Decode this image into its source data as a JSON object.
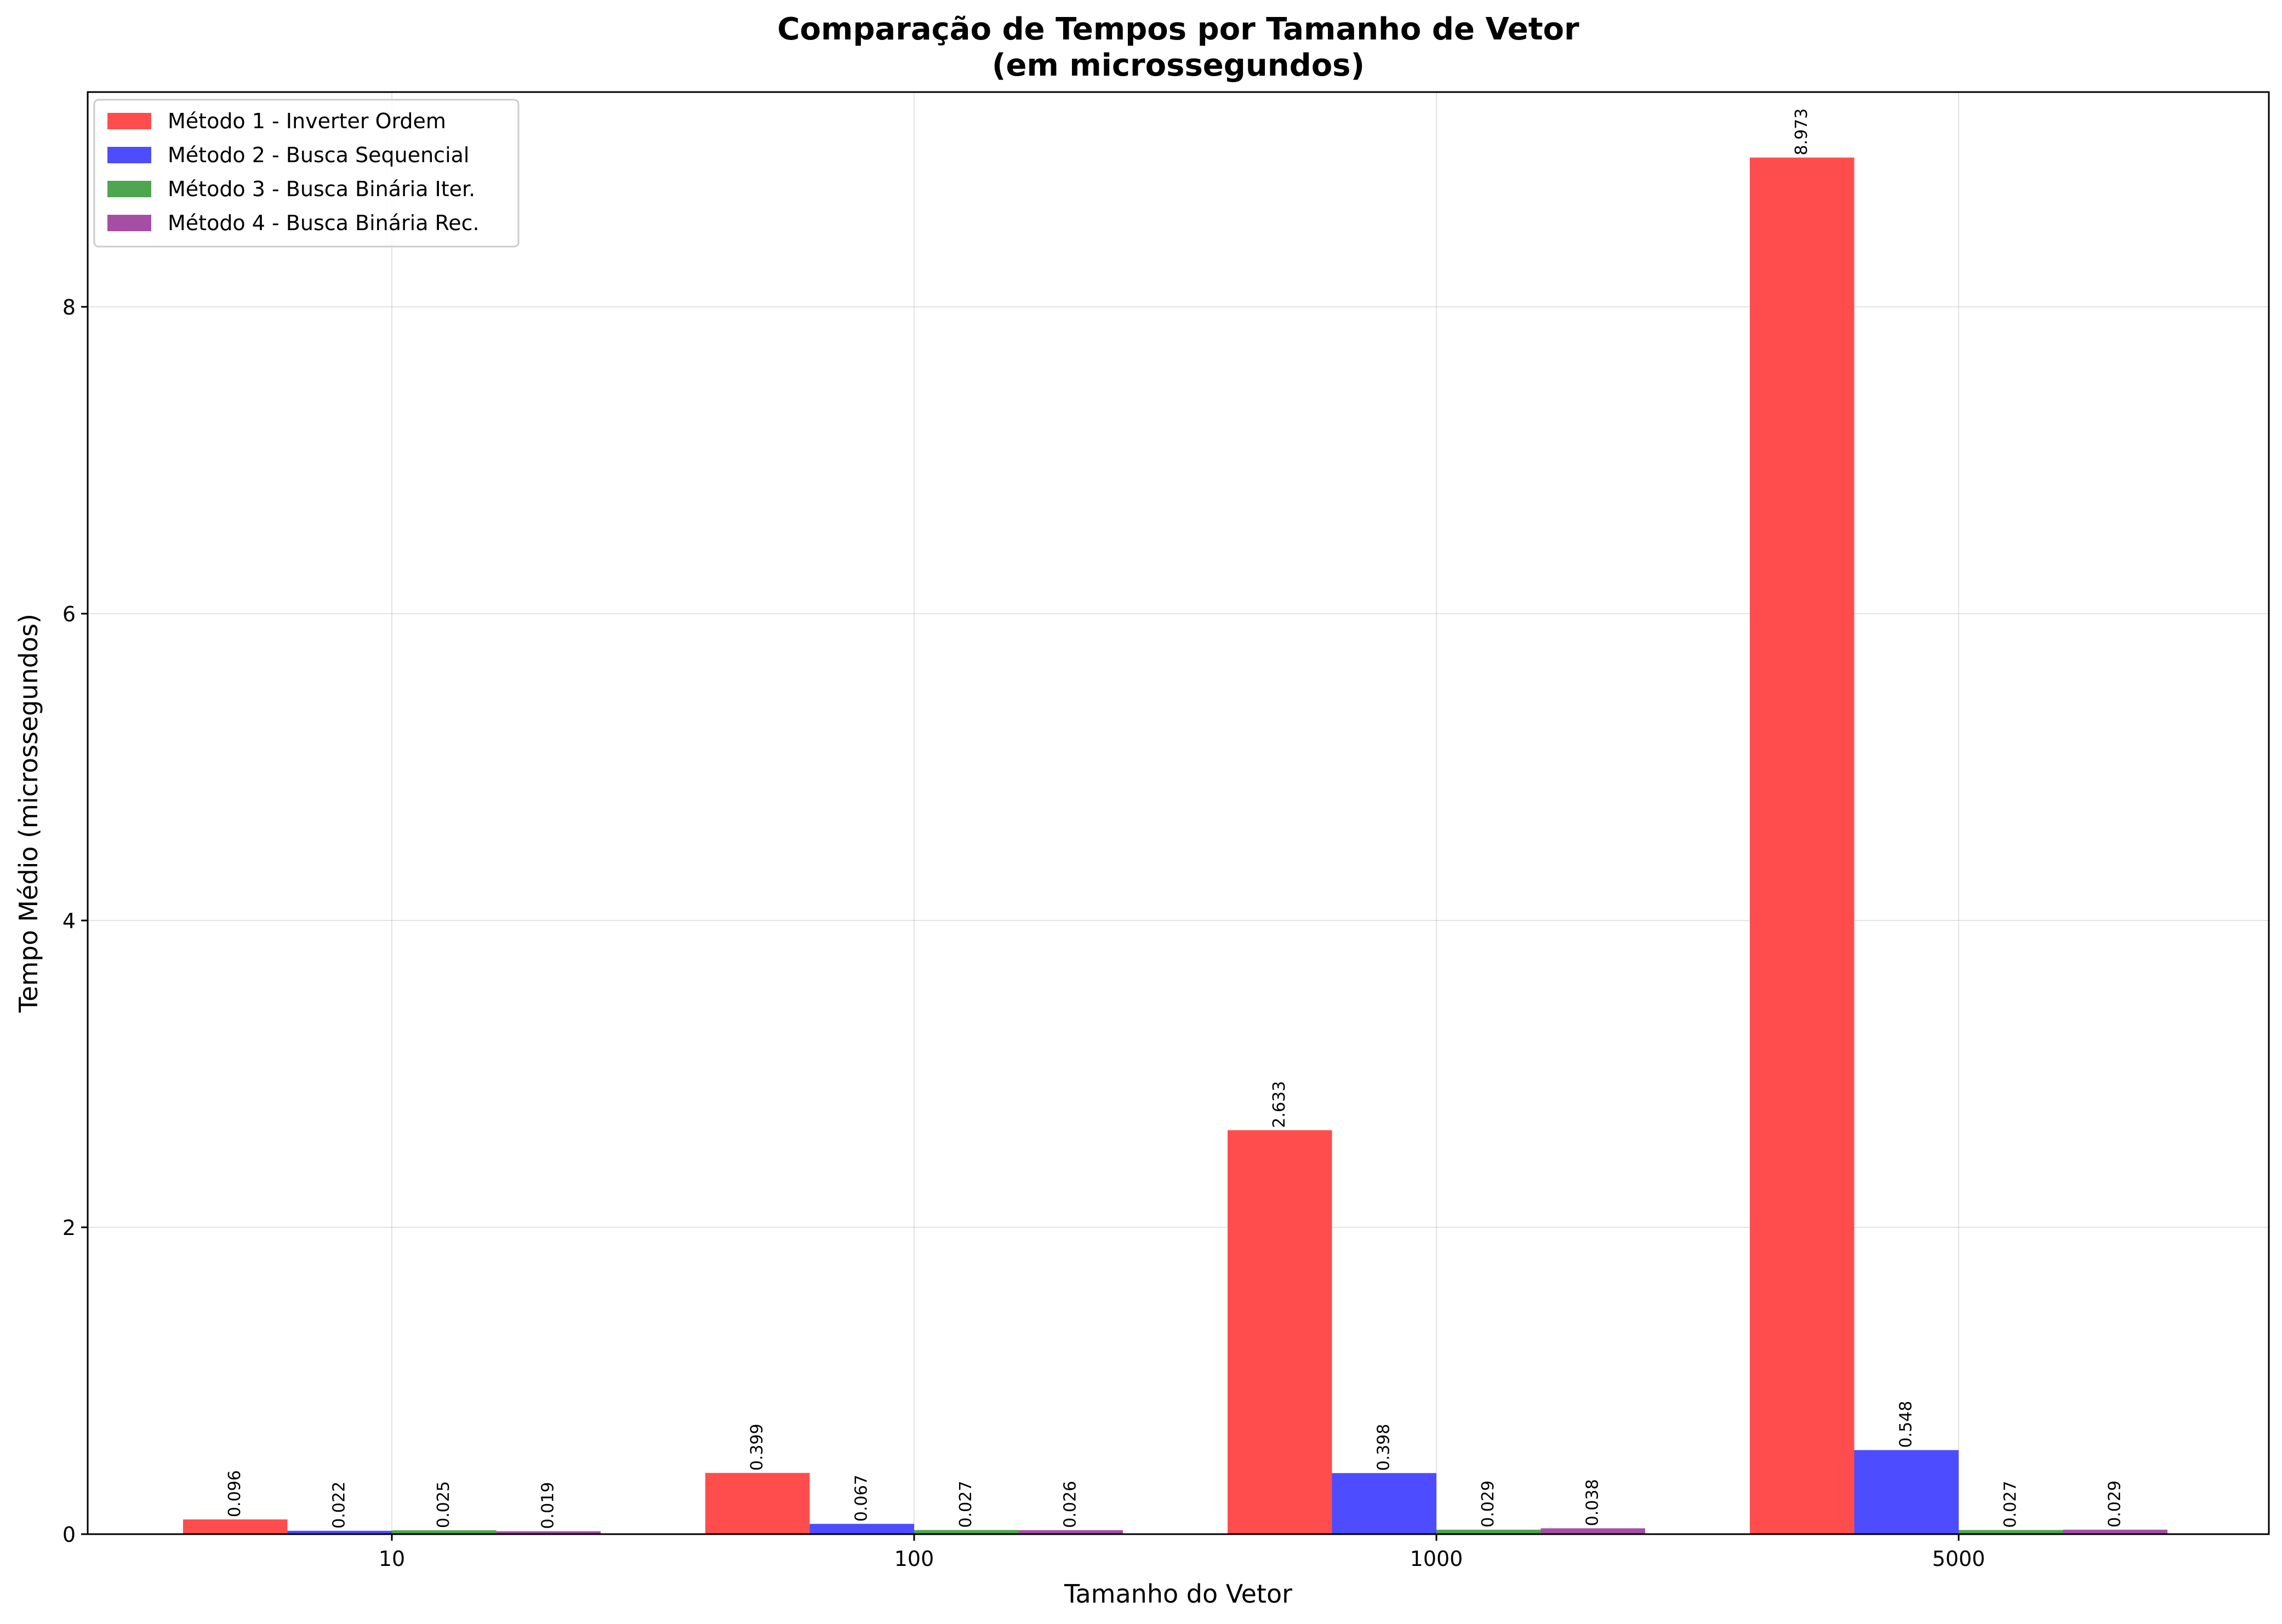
{
  "chart_data": {
    "type": "bar",
    "title": "Comparação de Tempos por Tamanho de Vetor",
    "subtitle": "(em microssegundos)",
    "xlabel": "Tamanho do Vetor",
    "ylabel": "Tempo Médio (microssegundos)",
    "categories": [
      "10",
      "100",
      "1000",
      "5000"
    ],
    "ylim": [
      0,
      9.4
    ],
    "yticks": [
      0,
      2,
      4,
      6,
      8
    ],
    "grid": true,
    "legend_position": "top-left",
    "series": [
      {
        "name": "Método 1 - Inverter Ordem",
        "color": "#ff4d4d",
        "values": [
          0.096,
          0.399,
          2.633,
          8.973
        ],
        "labels": [
          "0.096",
          "0.399",
          "2.633",
          "8.973"
        ]
      },
      {
        "name": "Método 2 - Busca Sequencial",
        "color": "#4d4dff",
        "values": [
          0.022,
          0.067,
          0.398,
          0.548
        ],
        "labels": [
          "0.022",
          "0.067",
          "0.398",
          "0.548"
        ]
      },
      {
        "name": "Método 3 - Busca Binária Iter.",
        "color": "#4ea64e",
        "values": [
          0.025,
          0.027,
          0.029,
          0.027
        ],
        "labels": [
          "0.025",
          "0.027",
          "0.029",
          "0.027"
        ]
      },
      {
        "name": "Método 4 - Busca Binária Rec.",
        "color": "#a64ea6",
        "values": [
          0.019,
          0.026,
          0.038,
          0.029
        ],
        "labels": [
          "0.019",
          "0.026",
          "0.038",
          "0.029"
        ]
      }
    ]
  }
}
